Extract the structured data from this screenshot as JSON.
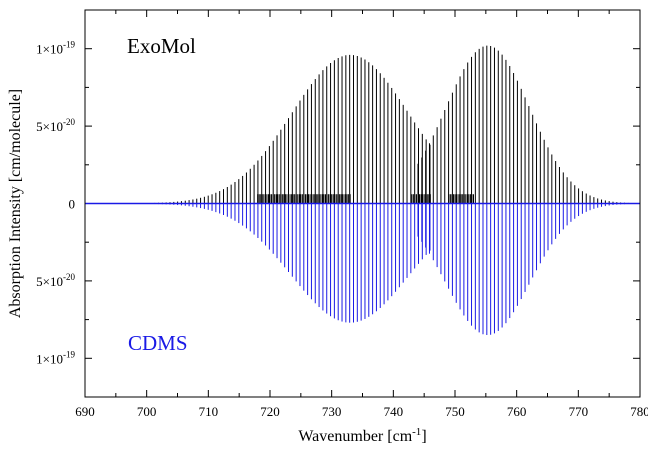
{
  "chart_data": {
    "type": "stick-spectrum",
    "xlabel_main": "Wavenumber [cm",
    "xlabel_sup": "-1",
    "xlabel_end": "]",
    "ylabel": "Absorption Intensity [cm/molecule]",
    "xlim": [
      690,
      780
    ],
    "ylim": [
      -1.25e-19,
      1.25e-19
    ],
    "x_ticks": [
      690,
      700,
      710,
      720,
      730,
      740,
      750,
      760,
      770,
      780
    ],
    "x_tick_labels": [
      "690",
      "700",
      "710",
      "720",
      "730",
      "740",
      "750",
      "760",
      "770",
      "780"
    ],
    "y_tick_labels": [
      {
        "value": 1e-19,
        "base": "1×10",
        "exp": "-19"
      },
      {
        "value": 5e-20,
        "base": "5×10",
        "exp": "-20"
      },
      {
        "value": 0,
        "base": "0",
        "exp": ""
      },
      {
        "value": -5e-20,
        "base": "5×10",
        "exp": "-20"
      },
      {
        "value": -1e-19,
        "base": "1×10",
        "exp": "-19"
      }
    ],
    "series": [
      {
        "name": "ExoMol",
        "color": "#000000",
        "direction": "up",
        "bands": [
          {
            "center": 733.0,
            "peak": 9.6e-20,
            "sigma": 9.5,
            "spacing": 0.62,
            "range": [
              692,
              746
            ]
          },
          {
            "center": 755.3,
            "peak": 1.02e-19,
            "sigma": 6.8,
            "spacing": 0.62,
            "range": [
              744,
              780
            ]
          }
        ],
        "q_branch_intensity": 6e-21
      },
      {
        "name": "CDMS",
        "color": "#1a1ae6",
        "direction": "down",
        "bands": [
          {
            "center": 733.0,
            "peak": 7.7e-20,
            "sigma": 9.5,
            "spacing": 0.62,
            "range": [
              692,
              746
            ]
          },
          {
            "center": 755.3,
            "peak": 8.5e-20,
            "sigma": 6.8,
            "spacing": 0.62,
            "range": [
              744,
              780
            ]
          }
        ]
      }
    ],
    "legend_labels": {
      "top": "ExoMol",
      "bottom": "CDMS"
    }
  }
}
